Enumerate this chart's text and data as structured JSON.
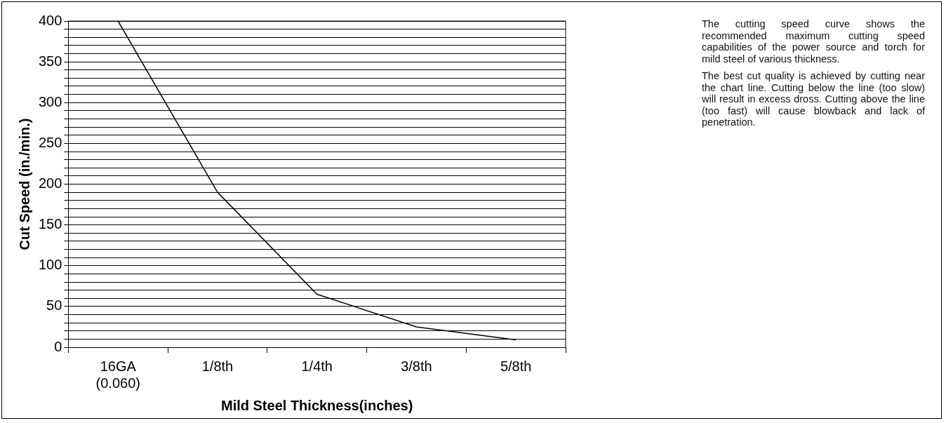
{
  "chart_data": {
    "type": "line",
    "xlabel": "Mild Steel Thickness(inches)",
    "ylabel": "Cut Speed (in./min.)",
    "categories": [
      "16GA\n(0.060)",
      "1/8th",
      "1/4th",
      "3/8th",
      "5/8th"
    ],
    "series": [
      {
        "color": "#000000",
        "values": [
          400,
          190,
          65,
          25,
          9
        ]
      }
    ],
    "ylim": [
      0,
      400
    ],
    "yticks": [
      0,
      {
        "value": 10,
        "label": null
      },
      {
        "value": 20,
        "label": null
      },
      {
        "value": 30,
        "label": null
      },
      {
        "value": 40,
        "label": null
      },
      50,
      {
        "value": 60,
        "label": null
      },
      {
        "value": 70,
        "label": null
      },
      {
        "value": 80,
        "label": null
      },
      {
        "value": 90,
        "label": null
      },
      100,
      {
        "value": 110,
        "label": null
      },
      {
        "value": 120,
        "label": null
      },
      {
        "value": 130,
        "label": null
      },
      {
        "value": 140,
        "label": null
      },
      150,
      {
        "value": 160,
        "label": null
      },
      {
        "value": 170,
        "label": null
      },
      {
        "value": 180,
        "label": null
      },
      {
        "value": 190,
        "label": null
      },
      200,
      {
        "value": 210,
        "label": null
      },
      {
        "value": 220,
        "label": null
      },
      {
        "value": 230,
        "label": null
      },
      {
        "value": 240,
        "label": null
      },
      250,
      {
        "value": 260,
        "label": null
      },
      {
        "value": 270,
        "label": null
      },
      {
        "value": 280,
        "label": null
      },
      {
        "value": 290,
        "label": null
      },
      300,
      {
        "value": 310,
        "label": null
      },
      {
        "value": 320,
        "label": null
      },
      {
        "value": 330,
        "label": null
      },
      {
        "value": 340,
        "label": null
      },
      350,
      {
        "value": 360,
        "label": null
      },
      {
        "value": 370,
        "label": null
      },
      {
        "value": 380,
        "label": null
      },
      {
        "value": 390,
        "label": null
      },
      400
    ],
    "grid": "y",
    "marker": "none",
    "line_style": "solid",
    "annotations": [
      "The cutting speed curve shows the recommended maximum cutting speed capabilities of the power source and torch for mild steel of various thickness.",
      "The best cut quality is achieved by cutting near the chart line. Cutting below the line (too slow) will result in excess dross. Cutting above the line (too fast) will cause blowback and lack of penetration."
    ]
  }
}
